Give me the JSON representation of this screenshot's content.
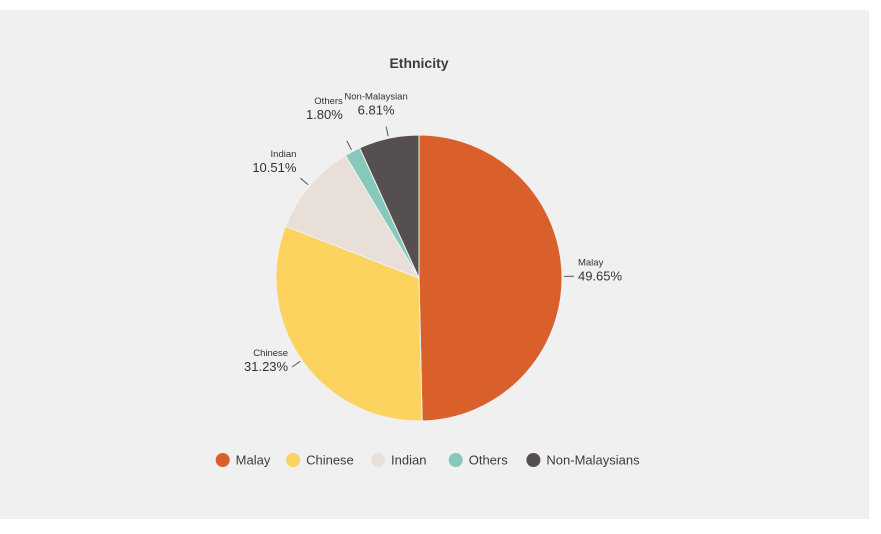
{
  "chart_data": {
    "type": "pie",
    "title": "Ethnicity",
    "slices": [
      {
        "label": "Malay",
        "value": 49.65,
        "value_label": "49.65%",
        "color": "#d95f2b"
      },
      {
        "label": "Chinese",
        "value": 31.23,
        "value_label": "31.23%",
        "color": "#fdd35f"
      },
      {
        "label": "Indian",
        "value": 10.51,
        "value_label": "10.51%",
        "color": "#e8e0d8"
      },
      {
        "label": "Others",
        "value": 1.8,
        "value_label": "1.80%",
        "color": "#86c9bb"
      },
      {
        "label": "Non-Malaysian",
        "value": 6.81,
        "value_label": "6.81%",
        "color": "#554f4f"
      }
    ],
    "legend": {
      "placement": "bottom",
      "items": [
        "Malay",
        "Chinese",
        "Indian",
        "Others",
        "Non-Malaysians"
      ]
    }
  }
}
